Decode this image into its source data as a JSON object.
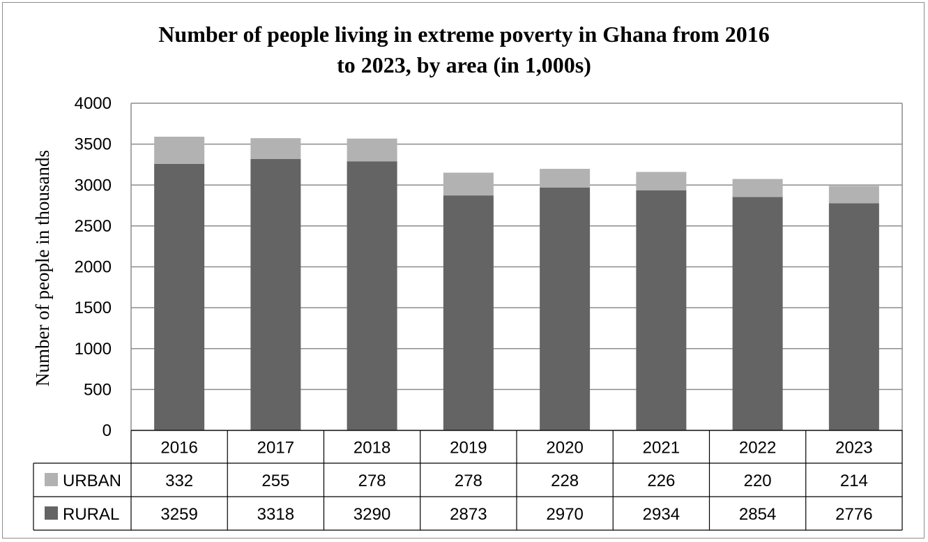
{
  "chart_data": {
    "type": "bar",
    "stacked": true,
    "title": "Number of people living in extreme poverty in Ghana from 2016 to 2023, by area (in 1,000s)",
    "title_lines": [
      "Number of people living in extreme poverty in Ghana from 2016",
      "to 2023, by area (in 1,000s)"
    ],
    "xlabel": "",
    "ylabel": "Number of people in thousands",
    "ylim": [
      0,
      4000
    ],
    "yticks": [
      0,
      500,
      1000,
      1500,
      2000,
      2500,
      3000,
      3500,
      4000
    ],
    "grid": true,
    "legend": "data-table",
    "categories": [
      "2016",
      "2017",
      "2018",
      "2019",
      "2020",
      "2021",
      "2022",
      "2023"
    ],
    "series": [
      {
        "name": "RURAL",
        "color": "#646464",
        "values": [
          3259,
          3318,
          3290,
          2873,
          2970,
          2934,
          2854,
          2776
        ]
      },
      {
        "name": "URBAN",
        "color": "#b2b2b2",
        "values": [
          332,
          255,
          278,
          278,
          228,
          226,
          220,
          214
        ]
      }
    ],
    "table_rows": [
      "URBAN",
      "RURAL"
    ]
  }
}
